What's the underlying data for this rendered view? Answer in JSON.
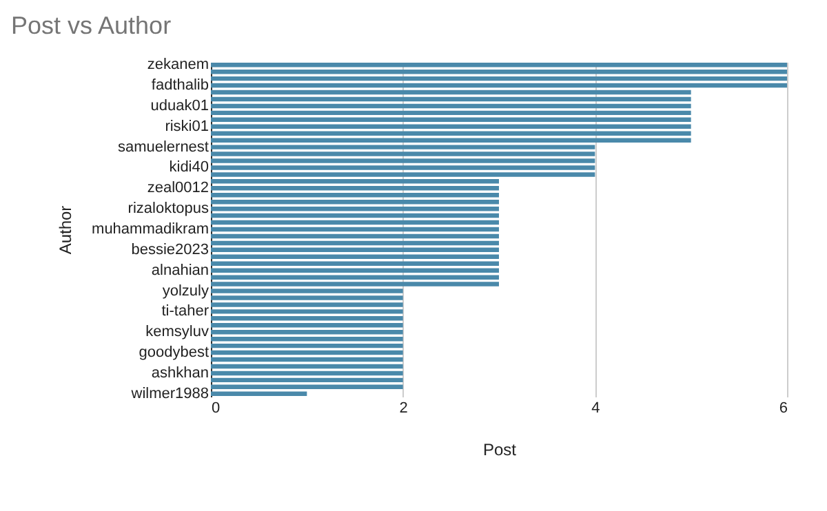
{
  "chart_data": {
    "type": "bar",
    "title": "Post vs Author",
    "xlabel": "Post",
    "ylabel": "Author",
    "orientation": "horizontal",
    "categories": [
      "zekanem",
      null,
      null,
      "fadthalib",
      null,
      null,
      "uduak01",
      null,
      null,
      "riski01",
      null,
      null,
      "samuelernest",
      null,
      null,
      "kidi40",
      null,
      null,
      "zeal0012",
      null,
      null,
      "rizaloktopus",
      null,
      null,
      "muhammadikram",
      null,
      null,
      "bessie2023",
      null,
      null,
      "alnahian",
      null,
      null,
      "yolzuly",
      null,
      null,
      "ti-taher",
      null,
      null,
      "kemsyluv",
      null,
      null,
      "goodybest",
      null,
      null,
      "ashkhan",
      null,
      null,
      "wilmer1988"
    ],
    "values": [
      6,
      6,
      6,
      6,
      5,
      5,
      5,
      5,
      5,
      5,
      5,
      5,
      4,
      4,
      4,
      4,
      4,
      3,
      3,
      3,
      3,
      3,
      3,
      3,
      3,
      3,
      3,
      3,
      3,
      3,
      3,
      3,
      3,
      2,
      2,
      2,
      2,
      2,
      2,
      2,
      2,
      2,
      2,
      2,
      2,
      2,
      2,
      2,
      1
    ],
    "color": "#4a89aa",
    "xlim": [
      0,
      6
    ],
    "xticks": [
      0,
      2,
      4,
      6
    ],
    "grid": "x"
  }
}
